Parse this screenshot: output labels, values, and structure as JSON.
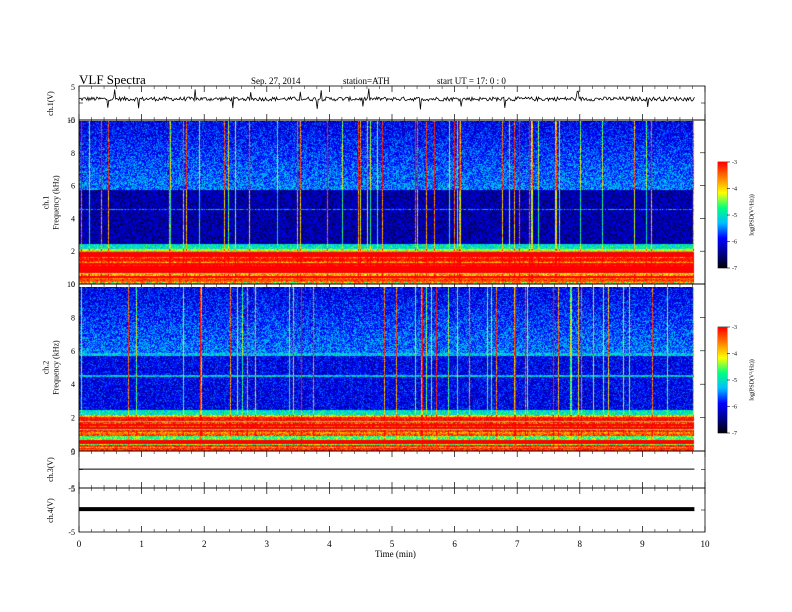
{
  "header": {
    "title": "VLF  Spectra",
    "date": "Sep. 27, 2014",
    "station": "station=ATH",
    "start": "start  UT  =    17: 0  : 0"
  },
  "chart_data": {
    "type": "heatmap",
    "xlabel": "Time  (min)",
    "xlim": [
      0,
      10
    ],
    "xticks": [
      "0",
      "1",
      "2",
      "3",
      "4",
      "5",
      "6",
      "7",
      "8",
      "9",
      "10"
    ],
    "data_end_min": 9.83,
    "panels": [
      {
        "name": "ch.1(V)",
        "type": "line",
        "ylabel": "ch.1(V)",
        "ylim": [
          -5,
          5
        ],
        "yticks": [
          "5",
          "-5"
        ],
        "level_v": 1.2,
        "noise_v": 0.6
      },
      {
        "name": "ch.1",
        "type": "heatmap",
        "ylabel_top": "ch.1",
        "ylabel": "Frequency  (kHz)",
        "ylim_khz": [
          0,
          10
        ],
        "yticks": [
          "10",
          "8",
          "6",
          "4",
          "2",
          "0"
        ],
        "colorbar": {
          "label": "log(PSD(V²/Hz))",
          "range": [
            -7,
            -3
          ],
          "ticks": [
            "-3",
            "-4",
            "-5",
            "-6",
            "-7"
          ]
        }
      },
      {
        "name": "ch.2",
        "type": "heatmap",
        "ylabel_top": "ch.2",
        "ylabel": "Frequency  (kHz)",
        "ylim_khz": [
          0,
          10
        ],
        "yticks": [
          "10",
          "8",
          "6",
          "4",
          "2",
          "0"
        ],
        "colorbar": {
          "label": "log(PSD(V²/Hz))",
          "range": [
            -7,
            -3
          ],
          "ticks": [
            "-3",
            "-4",
            "-5",
            "-6",
            "-7"
          ]
        }
      },
      {
        "name": "ch.3(V)",
        "type": "line",
        "ylabel": "ch.3(V)",
        "ylim": [
          -5,
          5
        ],
        "yticks": [
          "5",
          "-5"
        ],
        "level_v": 0.1
      },
      {
        "name": "ch.4(V)",
        "type": "line",
        "ylabel": "ch.4(V)",
        "ylim": [
          -5,
          5
        ],
        "yticks": [
          "5",
          "-5"
        ],
        "level_v": 0.2
      }
    ],
    "grid": false
  },
  "colors": {
    "colormap": [
      "#000000",
      "#00008b",
      "#0000ff",
      "#00bfff",
      "#00ff7f",
      "#ffff00",
      "#ff7f00",
      "#ff0000",
      "#ffffff"
    ]
  }
}
